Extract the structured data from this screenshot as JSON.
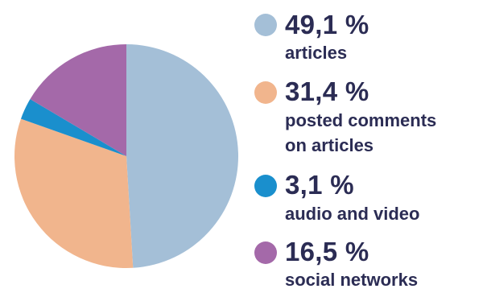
{
  "chart_data": {
    "type": "pie",
    "slices": [
      {
        "value_label": "49,1 %",
        "value": 49.1,
        "label_lines": [
          "articles"
        ],
        "color": "#a4bfd7"
      },
      {
        "value_label": "31,4 %",
        "value": 31.4,
        "label_lines": [
          "posted comments",
          "on articles"
        ],
        "color": "#f1b58d"
      },
      {
        "value_label": "3,1 %",
        "value": 3.1,
        "label_lines": [
          "audio and video"
        ],
        "color": "#1a8fcd"
      },
      {
        "value_label": "16,5 %",
        "value": 16.5,
        "label_lines": [
          "social networks"
        ],
        "color": "#a469a9"
      }
    ],
    "legend_position": "right"
  }
}
